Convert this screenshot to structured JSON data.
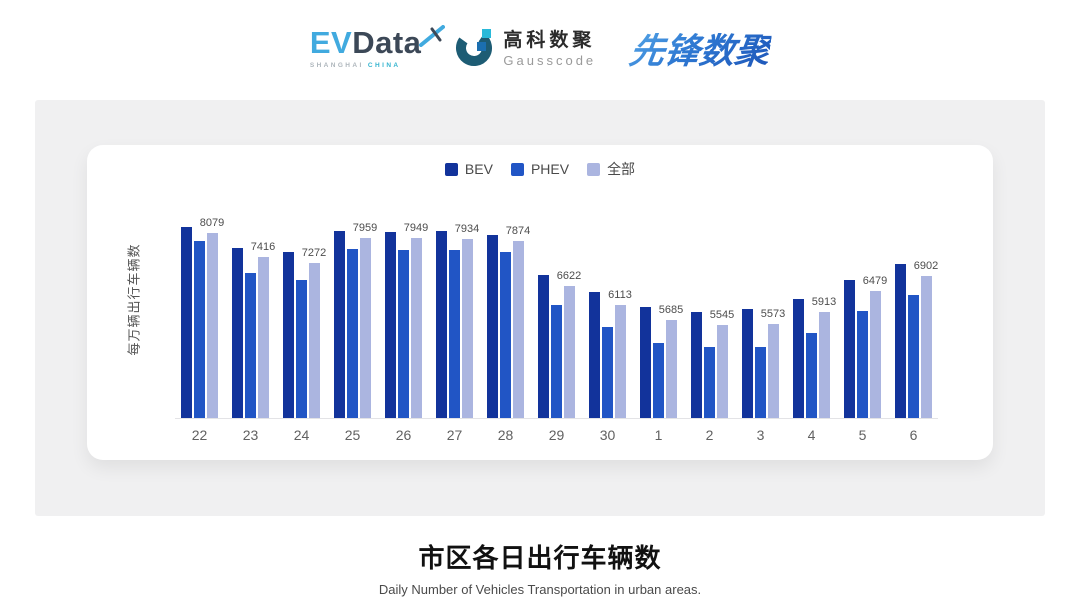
{
  "header": {
    "evdata": {
      "ev": "EV",
      "data": "Data",
      "sub_left": "SHANGHAI",
      "sub_right": "CHINA"
    },
    "gausscode": {
      "cn": "高科数聚",
      "en": "Gausscode"
    },
    "pioneer": {
      "text": "先锋数聚"
    }
  },
  "chart_data": {
    "type": "bar",
    "title": "市区各日出行车辆数",
    "subtitle": "Daily Number of Vehicles Transportation in urban areas.",
    "ylabel": "每万辆出行车辆数",
    "xlabel": "",
    "categories": [
      "22",
      "23",
      "24",
      "25",
      "26",
      "27",
      "28",
      "29",
      "30",
      "1",
      "2",
      "3",
      "4",
      "5",
      "6"
    ],
    "series": [
      {
        "name": "BEV",
        "color": "#12339b",
        "values": [
          8240,
          7675,
          7565,
          8140,
          8115,
          8130,
          8045,
          6940,
          6470,
          6055,
          5920,
          5995,
          6265,
          6785,
          7225
        ],
        "estimated": true
      },
      {
        "name": "PHEV",
        "color": "#2155c5",
        "values": [
          7865,
          7000,
          6790,
          7640,
          7610,
          7610,
          7565,
          6100,
          5515,
          5050,
          4960,
          4960,
          5335,
          5950,
          6370
        ],
        "estimated": true
      },
      {
        "name": "全部",
        "color": "#abb5e0",
        "values": [
          8079,
          7416,
          7272,
          7959,
          7949,
          7934,
          7874,
          6622,
          6113,
          5685,
          5545,
          5573,
          5913,
          6479,
          6902
        ],
        "estimated": false
      }
    ],
    "data_labels": [
      8079,
      7416,
      7272,
      7959,
      7949,
      7934,
      7874,
      6622,
      6113,
      5685,
      5545,
      5573,
      5913,
      6479,
      6902
    ],
    "data_label_series": "全部",
    "ylim": [
      3000,
      8500
    ],
    "grid": false,
    "legend_position": "top",
    "axis_line_color": "#e3e3e6"
  },
  "colors": {
    "panel_bg": "#f0f0f1",
    "card_bg": "#ffffff",
    "evdata_blue": "#41aadf",
    "evdata_slate": "#3c4857",
    "gauss_dark": "#1d5c74",
    "gauss_teal": "#29b9d9",
    "gauss_blue": "#1b6fb0",
    "pioneer_blue": "#2e78d2"
  }
}
